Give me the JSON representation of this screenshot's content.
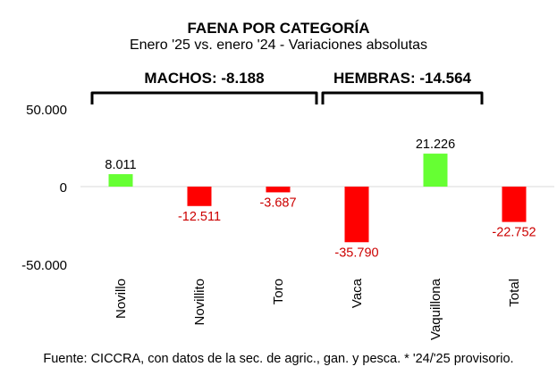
{
  "chart_data": {
    "type": "bar",
    "title": "FAENA POR CATEGORÍA",
    "subtitle": "Enero '25 vs. enero '24 - Variaciones absolutas",
    "categories": [
      "Novillo",
      "Novillito",
      "Toro",
      "Vaca",
      "Vaquillona",
      "Total"
    ],
    "values": [
      8011,
      -12511,
      -3687,
      -35790,
      21226,
      -22752
    ],
    "value_labels": [
      "8.011",
      "-12.511",
      "-3.687",
      "-35.790",
      "21.226",
      "-22.752"
    ],
    "ylim": [
      -50000,
      50000
    ],
    "yticks": [
      {
        "value": 50000,
        "label": "50.000"
      },
      {
        "value": 0,
        "label": "0"
      },
      {
        "value": -50000,
        "label": "-50.000"
      }
    ],
    "groups": [
      {
        "label": "MACHOS: -8.188",
        "from": 0,
        "to": 2
      },
      {
        "label": "HEMBRAS: -14.564",
        "from": 3,
        "to": 4
      }
    ],
    "colors": {
      "positive": "#66ff33",
      "negative": "#ff0000",
      "neg_label": "#cc0000"
    },
    "xlabel": "",
    "ylabel": "",
    "source": "Fuente: CICCRA, con datos de la sec. de agric., gan. y pesca. * '24/'25 provisorio."
  }
}
